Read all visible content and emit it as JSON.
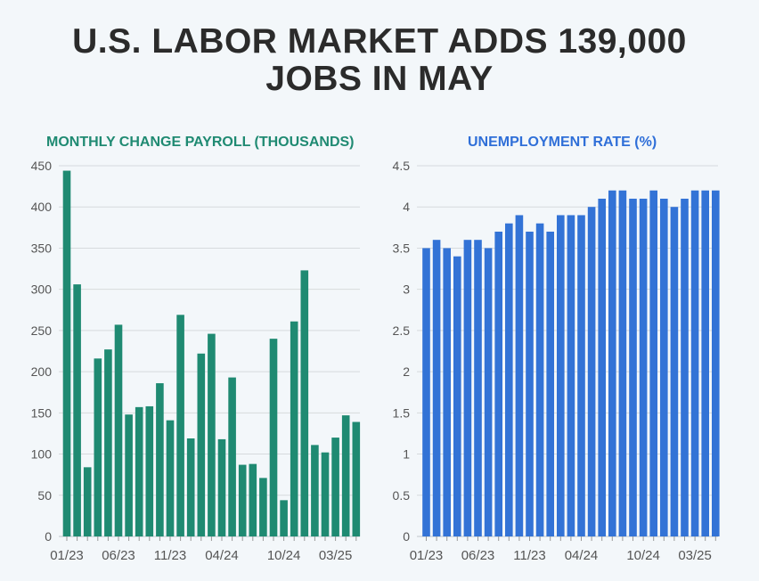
{
  "title_line1": "U.S. LABOR MARKET ADDS 139,000",
  "title_line2": "JOBS IN MAY",
  "colors": {
    "left_bar": "#1f8a72",
    "right_bar": "#3373d6",
    "left_title": "#1f8a72",
    "right_title": "#2f6fd8"
  },
  "chart_data": [
    {
      "type": "bar",
      "title": "MONTHLY CHANGE PAYROLL (THOUSANDS)",
      "xlabel": "",
      "ylabel": "",
      "ylim": [
        0,
        450
      ],
      "yticks": [
        0,
        50,
        100,
        150,
        200,
        250,
        300,
        350,
        400,
        450
      ],
      "ytick_labels": [
        "0",
        "50",
        "100",
        "150",
        "200",
        "250",
        "300",
        "350",
        "400",
        "450"
      ],
      "xtick_labels": [
        "01/23",
        "06/23",
        "11/23",
        "04/24",
        "10/24",
        "03/25"
      ],
      "xtick_index": [
        0,
        5,
        10,
        15,
        21,
        26
      ],
      "values": [
        444,
        306,
        84,
        216,
        227,
        257,
        148,
        157,
        158,
        186,
        141,
        269,
        119,
        222,
        246,
        118,
        193,
        87,
        88,
        71,
        240,
        44,
        261,
        323,
        111,
        102,
        120,
        147,
        139
      ],
      "grid": true
    },
    {
      "type": "bar",
      "title": "UNEMPLOYMENT RATE (%)",
      "xlabel": "",
      "ylabel": "",
      "ylim": [
        0,
        4.5
      ],
      "yticks": [
        0,
        0.5,
        1,
        1.5,
        2,
        2.5,
        3,
        3.5,
        4,
        4.5
      ],
      "ytick_labels": [
        "0",
        "0.5",
        "1",
        "1.5",
        "2",
        "2.5",
        "3",
        "3.5",
        "4",
        "4.5"
      ],
      "xtick_labels": [
        "01/23",
        "06/23",
        "11/23",
        "04/24",
        "10/24",
        "03/25"
      ],
      "xtick_index": [
        0,
        5,
        10,
        15,
        21,
        26
      ],
      "values": [
        3.5,
        3.6,
        3.5,
        3.4,
        3.6,
        3.6,
        3.5,
        3.7,
        3.8,
        3.9,
        3.7,
        3.8,
        3.7,
        3.9,
        3.9,
        3.9,
        4.0,
        4.1,
        4.2,
        4.2,
        4.1,
        4.1,
        4.2,
        4.1,
        4.0,
        4.1,
        4.2,
        4.2,
        4.2
      ],
      "grid": true
    }
  ]
}
